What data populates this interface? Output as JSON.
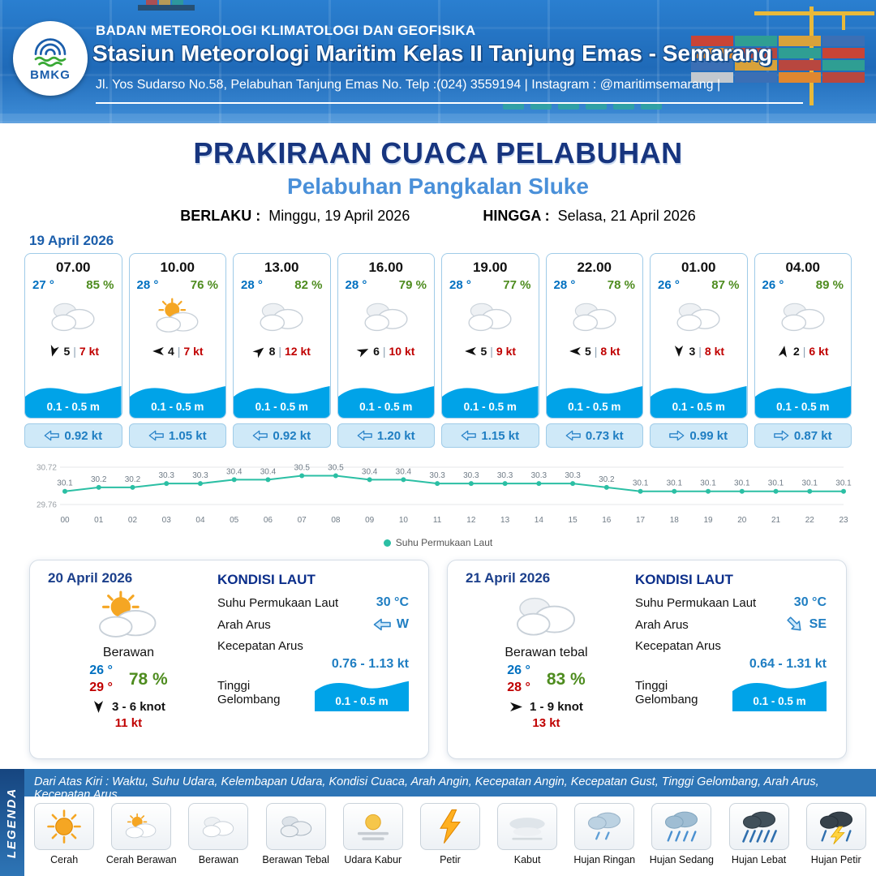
{
  "header": {
    "logo_text": "BMKG",
    "agency": "BADAN METEOROLOGI KLIMATOLOGI DAN GEOFISIKA",
    "station": "Stasiun Meteorologi Maritim Kelas II Tanjung Emas - Semarang",
    "address": "Jl. Yos Sudarso No.58, Pelabuhan Tanjung Emas No. Telp :(024) 3559194 | Instagram : @maritimsemarang |"
  },
  "title": {
    "main": "PRAKIRAAN CUACA PELABUHAN",
    "subtitle": "Pelabuhan Pangkalan Sluke",
    "valid_from_label": "BERLAKU :",
    "valid_from": "Minggu, 19 April 2026",
    "valid_to_label": "HINGGA :",
    "valid_to": "Selasa, 21 April 2026"
  },
  "ui": {
    "divider": "|"
  },
  "forecast": {
    "date": "19 April 2026",
    "cards": [
      {
        "time": "07.00",
        "temp": "27 °",
        "humidity": "85 %",
        "icon": "cloudy",
        "wind_deg": 105,
        "wind_speed": "5",
        "gust": "7 kt",
        "wave": "0.1 - 0.5 m",
        "current_deg": 180,
        "current": "0.92 kt"
      },
      {
        "time": "10.00",
        "temp": "28 °",
        "humidity": "76 %",
        "icon": "partly-cloudy",
        "wind_deg": 180,
        "wind_speed": "4",
        "gust": "7 kt",
        "wave": "0.1 - 0.5 m",
        "current_deg": 180,
        "current": "1.05 kt"
      },
      {
        "time": "13.00",
        "temp": "28 °",
        "humidity": "82 %",
        "icon": "cloudy",
        "wind_deg": -40,
        "wind_speed": "8",
        "gust": "12 kt",
        "wave": "0.1 - 0.5 m",
        "current_deg": 180,
        "current": "0.92 kt"
      },
      {
        "time": "16.00",
        "temp": "28 °",
        "humidity": "79 %",
        "icon": "cloudy",
        "wind_deg": -25,
        "wind_speed": "6",
        "gust": "10 kt",
        "wave": "0.1 - 0.5 m",
        "current_deg": 180,
        "current": "1.20 kt"
      },
      {
        "time": "19.00",
        "temp": "28 °",
        "humidity": "77 %",
        "icon": "cloudy",
        "wind_deg": 180,
        "wind_speed": "5",
        "gust": "9 kt",
        "wave": "0.1 - 0.5 m",
        "current_deg": 180,
        "current": "1.15 kt"
      },
      {
        "time": "22.00",
        "temp": "28 °",
        "humidity": "78 %",
        "icon": "cloudy",
        "wind_deg": 180,
        "wind_speed": "5",
        "gust": "8 kt",
        "wave": "0.1 - 0.5 m",
        "current_deg": 180,
        "current": "0.73 kt"
      },
      {
        "time": "01.00",
        "temp": "26 °",
        "humidity": "87 %",
        "icon": "cloudy",
        "wind_deg": 90,
        "wind_speed": "3",
        "gust": "8 kt",
        "wave": "0.1 - 0.5 m",
        "current_deg": 0,
        "current": "0.99 kt"
      },
      {
        "time": "04.00",
        "temp": "26 °",
        "humidity": "89 %",
        "icon": "cloudy",
        "wind_deg": -80,
        "wind_speed": "2",
        "gust": "6 kt",
        "wave": "0.1 - 0.5 m",
        "current_deg": 0,
        "current": "0.87 kt"
      }
    ]
  },
  "chart_data": {
    "type": "line",
    "title": "",
    "x": [
      "00",
      "01",
      "02",
      "03",
      "04",
      "05",
      "06",
      "07",
      "08",
      "09",
      "10",
      "11",
      "12",
      "13",
      "14",
      "15",
      "16",
      "17",
      "18",
      "19",
      "20",
      "21",
      "22",
      "23"
    ],
    "series": [
      {
        "name": "Suhu Permukaan Laut",
        "values": [
          30.1,
          30.2,
          30.2,
          30.3,
          30.3,
          30.4,
          30.4,
          30.5,
          30.5,
          30.4,
          30.4,
          30.3,
          30.3,
          30.3,
          30.3,
          30.3,
          30.2,
          30.1,
          30.1,
          30.1,
          30.1,
          30.1,
          30.1,
          30.1
        ]
      }
    ],
    "ylim": [
      29.76,
      30.72
    ],
    "y_tick_labels": [
      "30.72",
      "29.76"
    ],
    "line_color": "#2bbfa4",
    "grid": true,
    "legend_position": "bottom"
  },
  "daily": [
    {
      "date": "20 April 2026",
      "icon": "partly-cloudy",
      "condition": "Berawan",
      "temp_min": "26 °",
      "temp_max": "29 °",
      "humidity": "78 %",
      "wind_deg": 90,
      "wind_range": "3  - 6 knot",
      "gust": "11 kt",
      "sea": {
        "title": "KONDISI LAUT",
        "sst_label": "Suhu Permukaan Laut",
        "sst": "30 °C",
        "current_dir_label": "Arah Arus",
        "current_dir": "W",
        "current_deg": 180,
        "current_speed_label": "Kecepatan Arus",
        "current_speed": "0.76 - 1.13 kt",
        "wave_label": "Tinggi Gelombang",
        "wave": "0.1 - 0.5 m"
      }
    },
    {
      "date": "21 April 2026",
      "icon": "cloudy",
      "condition": "Berawan tebal",
      "temp_min": "26 °",
      "temp_max": "28 °",
      "humidity": "83 %",
      "wind_deg": 0,
      "wind_range": "1  - 9 knot",
      "gust": "13 kt",
      "sea": {
        "title": "KONDISI LAUT",
        "sst_label": "Suhu Permukaan Laut",
        "sst": "30 °C",
        "current_dir_label": "Arah Arus",
        "current_dir": "SE",
        "current_deg": 45,
        "current_speed_label": "Kecepatan Arus",
        "current_speed": "0.64 - 1.31 kt",
        "wave_label": "Tinggi Gelombang",
        "wave": "0.1 - 0.5 m"
      }
    }
  ],
  "legend": {
    "title": "LEGENDA",
    "description": "Dari Atas Kiri : Waktu, Suhu Udara, Kelembapan Udara, Kondisi Cuaca, Arah Angin, Kecepatan Angin, Kecepatan Gust, Tinggi Gelombang, Arah Arus, Kecepatan Arus",
    "items": [
      {
        "label": "Cerah",
        "icon": "sun"
      },
      {
        "label": "Cerah Berawan",
        "icon": "partly-cloudy"
      },
      {
        "label": "Berawan",
        "icon": "cloudy"
      },
      {
        "label": "Berawan Tebal",
        "icon": "thick-cloud"
      },
      {
        "label": "Udara Kabur",
        "icon": "haze"
      },
      {
        "label": "Petir",
        "icon": "lightning"
      },
      {
        "label": "Kabut",
        "icon": "fog"
      },
      {
        "label": "Hujan Ringan",
        "icon": "rain-light"
      },
      {
        "label": "Hujan Sedang",
        "icon": "rain-medium"
      },
      {
        "label": "Hujan Lebat",
        "icon": "rain-heavy"
      },
      {
        "label": "Hujan Petir",
        "icon": "thunderstorm"
      }
    ]
  },
  "colors": {
    "header_blue": "#2a7fd0",
    "title_navy": "#17357f",
    "subtitle_blue": "#4a90d9",
    "temp_blue": "#0070c0",
    "humidity_green": "#4e8c1f",
    "alert_red": "#c00000",
    "wave_blue": "#00a3e8",
    "current_blue": "#1f7ec2",
    "chart_teal": "#2bbfa4",
    "legend_blue": "#2e75b6"
  }
}
